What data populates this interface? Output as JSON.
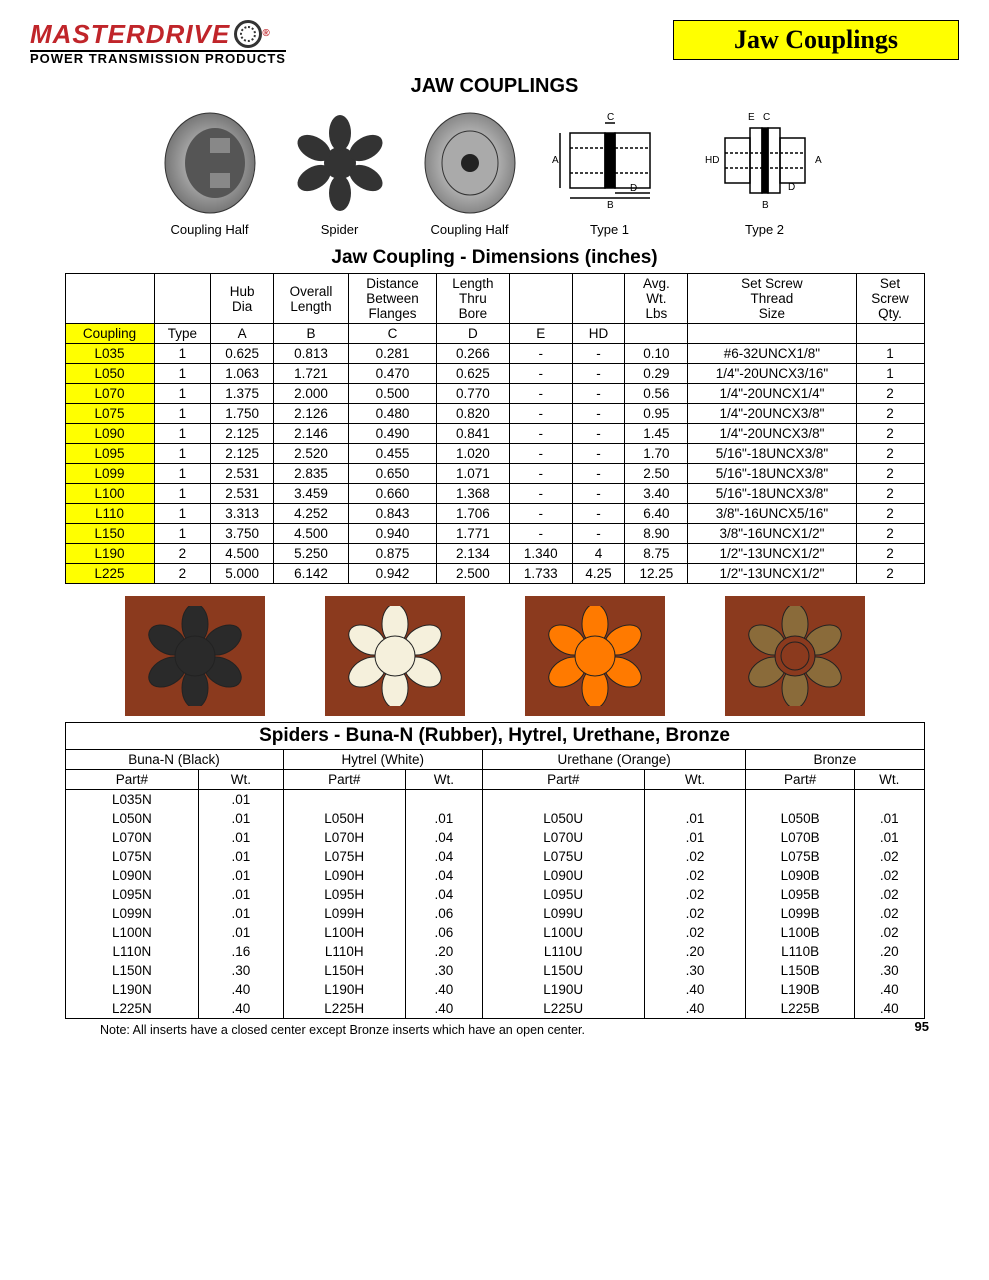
{
  "brand": {
    "name": "MASTERDRIVE",
    "tagline": "POWER TRANSMISSION PRODUCTS",
    "color": "#c0252a"
  },
  "page": {
    "badge": "Jaw Couplings",
    "main_title": "JAW COUPLINGS",
    "dim_title": "Jaw Coupling - Dimensions (inches)",
    "spider_title": "Spiders - Buna-N (Rubber), Hytrel, Urethane, Bronze",
    "note": "Note: All inserts have a closed center except Bronze inserts which have an open center.",
    "number": "95"
  },
  "figure_labels": {
    "half1": "Coupling Half",
    "spider": "Spider",
    "half2": "Coupling Half",
    "type1": "Type 1",
    "type2": "Type 2"
  },
  "dim_headers": {
    "row1": [
      "",
      "",
      "Hub Dia",
      "Overall Length",
      "Distance Between Flanges",
      "Length Thru Bore",
      "",
      "",
      "Avg. Wt. Lbs",
      "Set Screw Thread Size",
      "Set Screw Qty."
    ],
    "row2": [
      "Coupling",
      "Type",
      "A",
      "B",
      "C",
      "D",
      "E",
      "HD",
      "",
      "",
      ""
    ]
  },
  "dim_rows": [
    [
      "L035",
      "1",
      "0.625",
      "0.813",
      "0.281",
      "0.266",
      "-",
      "-",
      "0.10",
      "#6-32UNCX1/8\"",
      "1"
    ],
    [
      "L050",
      "1",
      "1.063",
      "1.721",
      "0.470",
      "0.625",
      "-",
      "-",
      "0.29",
      "1/4\"-20UNCX3/16\"",
      "1"
    ],
    [
      "L070",
      "1",
      "1.375",
      "2.000",
      "0.500",
      "0.770",
      "-",
      "-",
      "0.56",
      "1/4\"-20UNCX1/4\"",
      "2"
    ],
    [
      "L075",
      "1",
      "1.750",
      "2.126",
      "0.480",
      "0.820",
      "-",
      "-",
      "0.95",
      "1/4\"-20UNCX3/8\"",
      "2"
    ],
    [
      "L090",
      "1",
      "2.125",
      "2.146",
      "0.490",
      "0.841",
      "-",
      "-",
      "1.45",
      "1/4\"-20UNCX3/8\"",
      "2"
    ],
    [
      "L095",
      "1",
      "2.125",
      "2.520",
      "0.455",
      "1.020",
      "-",
      "-",
      "1.70",
      "5/16\"-18UNCX3/8\"",
      "2"
    ],
    [
      "L099",
      "1",
      "2.531",
      "2.835",
      "0.650",
      "1.071",
      "-",
      "-",
      "2.50",
      "5/16\"-18UNCX3/8\"",
      "2"
    ],
    [
      "L100",
      "1",
      "2.531",
      "3.459",
      "0.660",
      "1.368",
      "-",
      "-",
      "3.40",
      "5/16\"-18UNCX3/8\"",
      "2"
    ],
    [
      "L110",
      "1",
      "3.313",
      "4.252",
      "0.843",
      "1.706",
      "-",
      "-",
      "6.40",
      "3/8\"-16UNCX5/16\"",
      "2"
    ],
    [
      "L150",
      "1",
      "3.750",
      "4.500",
      "0.940",
      "1.771",
      "-",
      "-",
      "8.90",
      "3/8\"-16UNCX1/2\"",
      "2"
    ],
    [
      "L190",
      "2",
      "4.500",
      "5.250",
      "0.875",
      "2.134",
      "1.340",
      "4",
      "8.75",
      "1/2\"-13UNCX1/2\"",
      "2"
    ],
    [
      "L225",
      "2",
      "5.000",
      "6.142",
      "0.942",
      "2.500",
      "1.733",
      "4.25",
      "12.25",
      "1/2\"-13UNCX1/2\"",
      "2"
    ]
  ],
  "spider_materials": [
    {
      "name": "Buna-N (Black)",
      "color": "#2a2a2a"
    },
    {
      "name": "Hytrel (White)",
      "color": "#f5f0dc"
    },
    {
      "name": "Urethane (Orange)",
      "color": "#ff7a00"
    },
    {
      "name": "Bronze",
      "color": "#8a6b3a"
    }
  ],
  "spider_col_labels": {
    "part": "Part#",
    "wt": "Wt."
  },
  "spider_rows": [
    [
      {
        "p": "L035N",
        "w": ".01"
      },
      {
        "p": "",
        "w": ""
      },
      {
        "p": "",
        "w": ""
      },
      {
        "p": "",
        "w": ""
      }
    ],
    [
      {
        "p": "L050N",
        "w": ".01"
      },
      {
        "p": "L050H",
        "w": ".01"
      },
      {
        "p": "L050U",
        "w": ".01"
      },
      {
        "p": "L050B",
        "w": ".01"
      }
    ],
    [
      {
        "p": "L070N",
        "w": ".01"
      },
      {
        "p": "L070H",
        "w": ".04"
      },
      {
        "p": "L070U",
        "w": ".01"
      },
      {
        "p": "L070B",
        "w": ".01"
      }
    ],
    [
      {
        "p": "L075N",
        "w": ".01"
      },
      {
        "p": "L075H",
        "w": ".04"
      },
      {
        "p": "L075U",
        "w": ".02"
      },
      {
        "p": "L075B",
        "w": ".02"
      }
    ],
    [
      {
        "p": "L090N",
        "w": ".01"
      },
      {
        "p": "L090H",
        "w": ".04"
      },
      {
        "p": "L090U",
        "w": ".02"
      },
      {
        "p": "L090B",
        "w": ".02"
      }
    ],
    [
      {
        "p": "L095N",
        "w": ".01"
      },
      {
        "p": "L095H",
        "w": ".04"
      },
      {
        "p": "L095U",
        "w": ".02"
      },
      {
        "p": "L095B",
        "w": ".02"
      }
    ],
    [
      {
        "p": "L099N",
        "w": ".01"
      },
      {
        "p": "L099H",
        "w": ".06"
      },
      {
        "p": "L099U",
        "w": ".02"
      },
      {
        "p": "L099B",
        "w": ".02"
      }
    ],
    [
      {
        "p": "L100N",
        "w": ".01"
      },
      {
        "p": "L100H",
        "w": ".06"
      },
      {
        "p": "L100U",
        "w": ".02"
      },
      {
        "p": "L100B",
        "w": ".02"
      }
    ],
    [
      {
        "p": "L110N",
        "w": ".16"
      },
      {
        "p": "L110H",
        "w": ".20"
      },
      {
        "p": "L110U",
        "w": ".20"
      },
      {
        "p": "L110B",
        "w": ".20"
      }
    ],
    [
      {
        "p": "L150N",
        "w": ".30"
      },
      {
        "p": "L150H",
        "w": ".30"
      },
      {
        "p": "L150U",
        "w": ".30"
      },
      {
        "p": "L150B",
        "w": ".30"
      }
    ],
    [
      {
        "p": "L190N",
        "w": ".40"
      },
      {
        "p": "L190H",
        "w": ".40"
      },
      {
        "p": "L190U",
        "w": ".40"
      },
      {
        "p": "L190B",
        "w": ".40"
      }
    ],
    [
      {
        "p": "L225N",
        "w": ".40"
      },
      {
        "p": "L225H",
        "w": ".40"
      },
      {
        "p": "L225U",
        "w": ".40"
      },
      {
        "p": "L225B",
        "w": ".40"
      }
    ]
  ]
}
